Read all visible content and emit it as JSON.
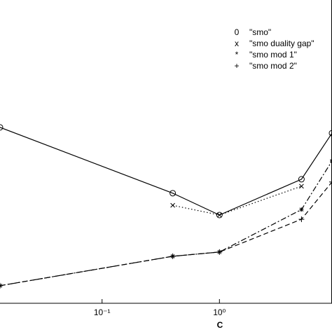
{
  "chart_data": {
    "type": "line",
    "xlabel": "C",
    "xscale": "log",
    "xlim": [
      0.0135,
      9.1
    ],
    "ylim": [
      0,
      100
    ],
    "xticks": [
      {
        "value": 0.1,
        "label": "10⁻¹"
      },
      {
        "value": 1,
        "label": "10⁰"
      }
    ],
    "legend": "upper right",
    "series": [
      {
        "name": "\"smo\"",
        "marker": "0",
        "linestyle": "solid",
        "color": "#000000",
        "x": [
          0.0135,
          0.4,
          1,
          5,
          9.1
        ],
        "values": [
          58.0,
          36.3,
          29.1,
          40.9,
          56.1
        ]
      },
      {
        "name": "\"smo duality gap\"",
        "marker": "x",
        "linestyle": "dotted",
        "color": "#000000",
        "x": [
          0.4,
          1,
          5
        ],
        "values": [
          32.3,
          29.1,
          38.6
        ]
      },
      {
        "name": "\"smo mod 1\"",
        "marker": "*",
        "linestyle": "dashdot",
        "color": "#000000",
        "x": [
          0.0135,
          0.4,
          1,
          5,
          9.1
        ],
        "values": [
          5.8,
          15.5,
          16.9,
          30.9,
          46.9
        ]
      },
      {
        "name": "\"smo mod 2\"",
        "marker": "+",
        "linestyle": "dashed",
        "color": "#000000",
        "x": [
          0.0135,
          0.4,
          1,
          5,
          9.1
        ],
        "values": [
          5.8,
          15.5,
          16.9,
          27.7,
          40.0
        ]
      }
    ]
  }
}
